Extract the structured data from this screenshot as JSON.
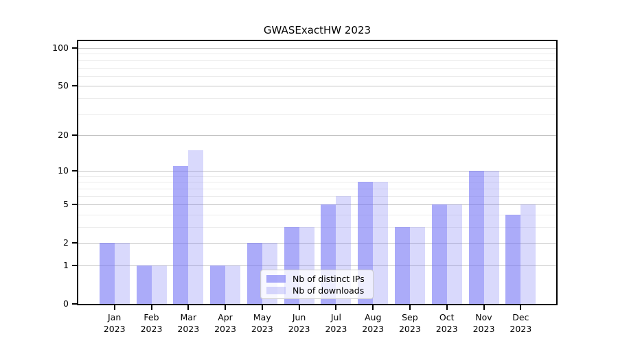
{
  "title": "GWASExactHW 2023",
  "colors": {
    "bar_dark": "rgba(110,110,245,0.58)",
    "bar_light": "rgba(110,110,245,0.26)",
    "grid_major": "#c3c3c3",
    "grid_minor": "#ececec",
    "spine": "#000000",
    "text": "#000000"
  },
  "chart_data": {
    "type": "bar",
    "title": "GWASExactHW 2023",
    "x_categories": [
      "Jan 2023",
      "Feb 2023",
      "Mar 2023",
      "Apr 2023",
      "May 2023",
      "Jun 2023",
      "Jul 2023",
      "Aug 2023",
      "Sep 2023",
      "Oct 2023",
      "Nov 2023",
      "Dec 2023"
    ],
    "x_tick_months": [
      "Jan",
      "Feb",
      "Mar",
      "Apr",
      "May",
      "Jun",
      "Jul",
      "Aug",
      "Sep",
      "Oct",
      "Nov",
      "Dec"
    ],
    "x_tick_year": "2023",
    "series": [
      {
        "name": "Nb of distinct IPs",
        "values": [
          2,
          1,
          11,
          1,
          2,
          3,
          5,
          8,
          3,
          5,
          10,
          4
        ]
      },
      {
        "name": "Nb of downloads",
        "values": [
          2,
          1,
          15,
          1,
          2,
          3,
          6,
          8,
          3,
          5,
          10,
          5
        ]
      }
    ],
    "y_scale": "log1p",
    "y_tick_values": [
      100,
      50,
      20,
      10,
      5,
      2,
      1,
      0
    ],
    "y_minor_gridline_values": [
      90,
      80,
      70,
      60,
      40,
      30,
      9,
      8,
      7,
      6,
      4,
      3
    ],
    "ylim": [
      0,
      113
    ],
    "grid": "horizontal",
    "legend_entries": [
      "Nb of distinct IPs",
      "Nb of downloads"
    ],
    "legend_position": "bottom-center"
  }
}
